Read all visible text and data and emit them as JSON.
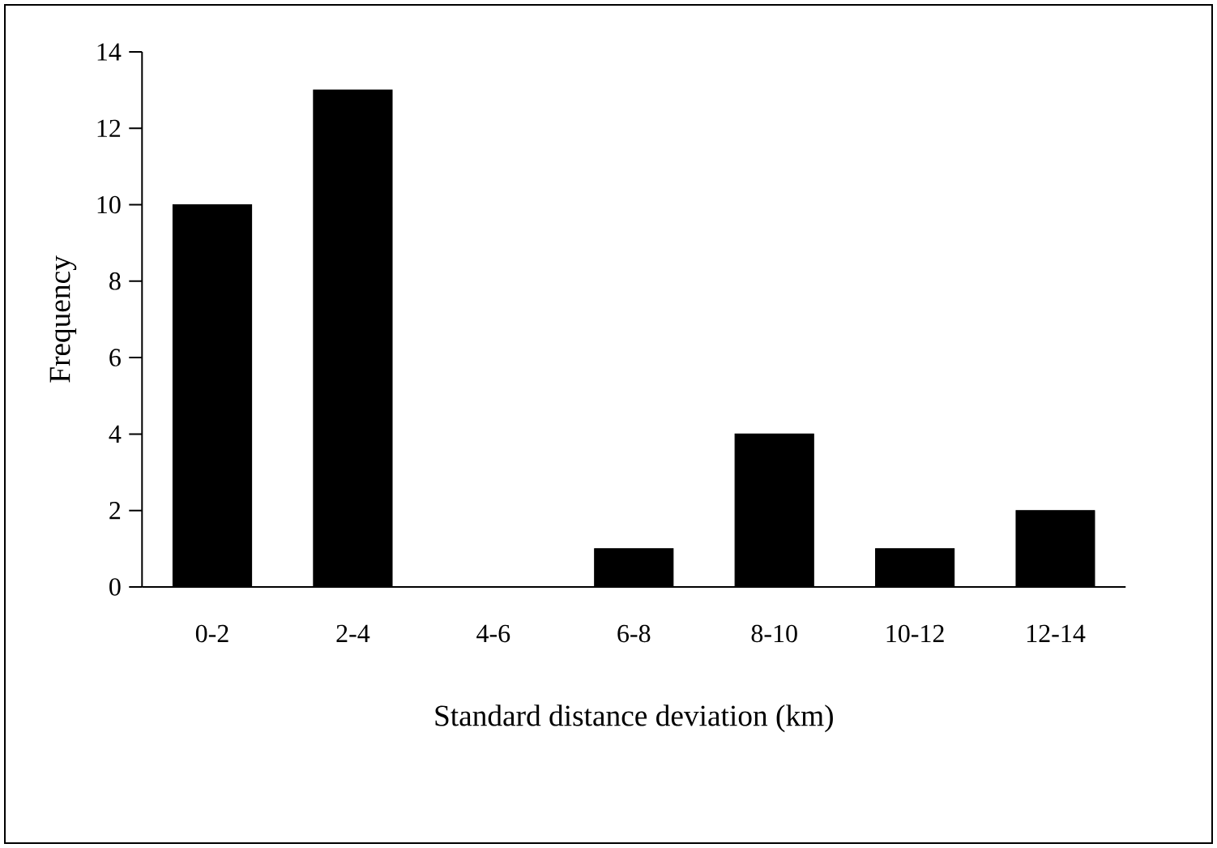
{
  "chart_data": {
    "type": "bar",
    "xlabel": "Standard distance deviation (km)",
    "ylabel": "Frequency",
    "categories": [
      "0-2",
      "2-4",
      "4-6",
      "6-8",
      "8-10",
      "10-12",
      "12-14"
    ],
    "values": [
      10,
      13,
      0,
      1,
      4,
      1,
      2
    ],
    "color": "#000000",
    "ylim": [
      0,
      14
    ],
    "yticks": [
      0,
      2,
      4,
      6,
      8,
      10,
      12,
      14
    ],
    "grid": false
  }
}
